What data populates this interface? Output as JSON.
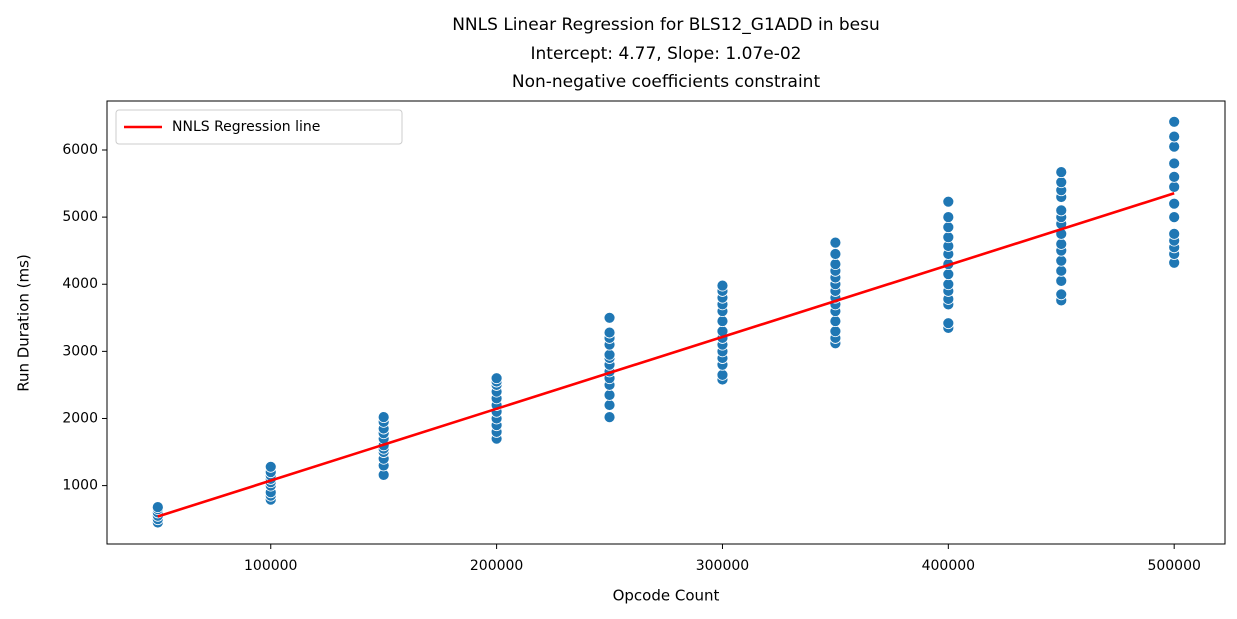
{
  "chart_data": {
    "type": "scatter",
    "title": [
      "NNLS Linear Regression for BLS12_G1ADD in besu",
      "Intercept: 4.77, Slope: 1.07e-02",
      "Non-negative coefficients constraint"
    ],
    "x_label": "Opcode Count",
    "y_label": "Run Duration (ms)",
    "xlim": [
      27500,
      522500
    ],
    "ylim": [
      130,
      6730
    ],
    "xticks": [
      100000,
      200000,
      300000,
      400000,
      500000
    ],
    "yticks": [
      1000,
      2000,
      3000,
      4000,
      5000,
      6000
    ],
    "grid": false,
    "legend": "upper left",
    "series": [
      {
        "type": "scatter",
        "color": "#1f77b4",
        "x": [
          50000,
          50000,
          50000,
          50000,
          50000,
          50000,
          100000,
          100000,
          100000,
          100000,
          100000,
          100000,
          100000,
          100000,
          100000,
          150000,
          150000,
          150000,
          150000,
          150000,
          150000,
          150000,
          150000,
          150000,
          150000,
          150000,
          200000,
          200000,
          200000,
          200000,
          200000,
          200000,
          200000,
          200000,
          200000,
          200000,
          200000,
          250000,
          250000,
          250000,
          250000,
          250000,
          250000,
          250000,
          250000,
          250000,
          250000,
          250000,
          250000,
          250000,
          300000,
          300000,
          300000,
          300000,
          300000,
          300000,
          300000,
          300000,
          300000,
          300000,
          300000,
          300000,
          300000,
          300000,
          350000,
          350000,
          350000,
          350000,
          350000,
          350000,
          350000,
          350000,
          350000,
          350000,
          350000,
          350000,
          350000,
          350000,
          400000,
          400000,
          400000,
          400000,
          400000,
          400000,
          400000,
          400000,
          400000,
          400000,
          400000,
          400000,
          400000,
          400000,
          450000,
          450000,
          450000,
          450000,
          450000,
          450000,
          450000,
          450000,
          450000,
          450000,
          450000,
          450000,
          450000,
          450000,
          450000,
          500000,
          500000,
          500000,
          500000,
          500000,
          500000,
          500000,
          500000,
          500000,
          500000,
          500000,
          500000,
          500000
        ],
        "values": [
          450,
          500,
          550,
          600,
          650,
          680,
          790,
          850,
          900,
          1000,
          1050,
          1100,
          1150,
          1200,
          1280,
          1160,
          1300,
          1400,
          1500,
          1550,
          1600,
          1700,
          1780,
          1850,
          1950,
          2020,
          1700,
          1800,
          1900,
          2000,
          2100,
          2200,
          2300,
          2400,
          2500,
          2550,
          2600,
          2020,
          2200,
          2350,
          2500,
          2600,
          2700,
          2800,
          2900,
          2950,
          3100,
          3200,
          3280,
          3500,
          2580,
          2650,
          2800,
          2900,
          3000,
          3100,
          3200,
          3300,
          3450,
          3600,
          3700,
          3800,
          3900,
          3980,
          3120,
          3200,
          3300,
          3450,
          3600,
          3700,
          3800,
          3900,
          4000,
          4100,
          4200,
          4300,
          4450,
          4620,
          3350,
          3420,
          3700,
          3780,
          3900,
          4000,
          4150,
          4300,
          4450,
          4570,
          4700,
          4850,
          5000,
          5230,
          3760,
          3850,
          4050,
          4200,
          4350,
          4500,
          4600,
          4750,
          4900,
          5000,
          5100,
          5300,
          5400,
          5520,
          5670,
          4320,
          4450,
          4550,
          4650,
          4750,
          5000,
          5200,
          5450,
          5600,
          5800,
          6050,
          6200,
          6420
        ]
      },
      {
        "type": "line",
        "name": "NNLS Regression line",
        "color": "#ff0000",
        "x": [
          50000,
          500000
        ],
        "values": [
          540,
          5355
        ]
      }
    ]
  }
}
